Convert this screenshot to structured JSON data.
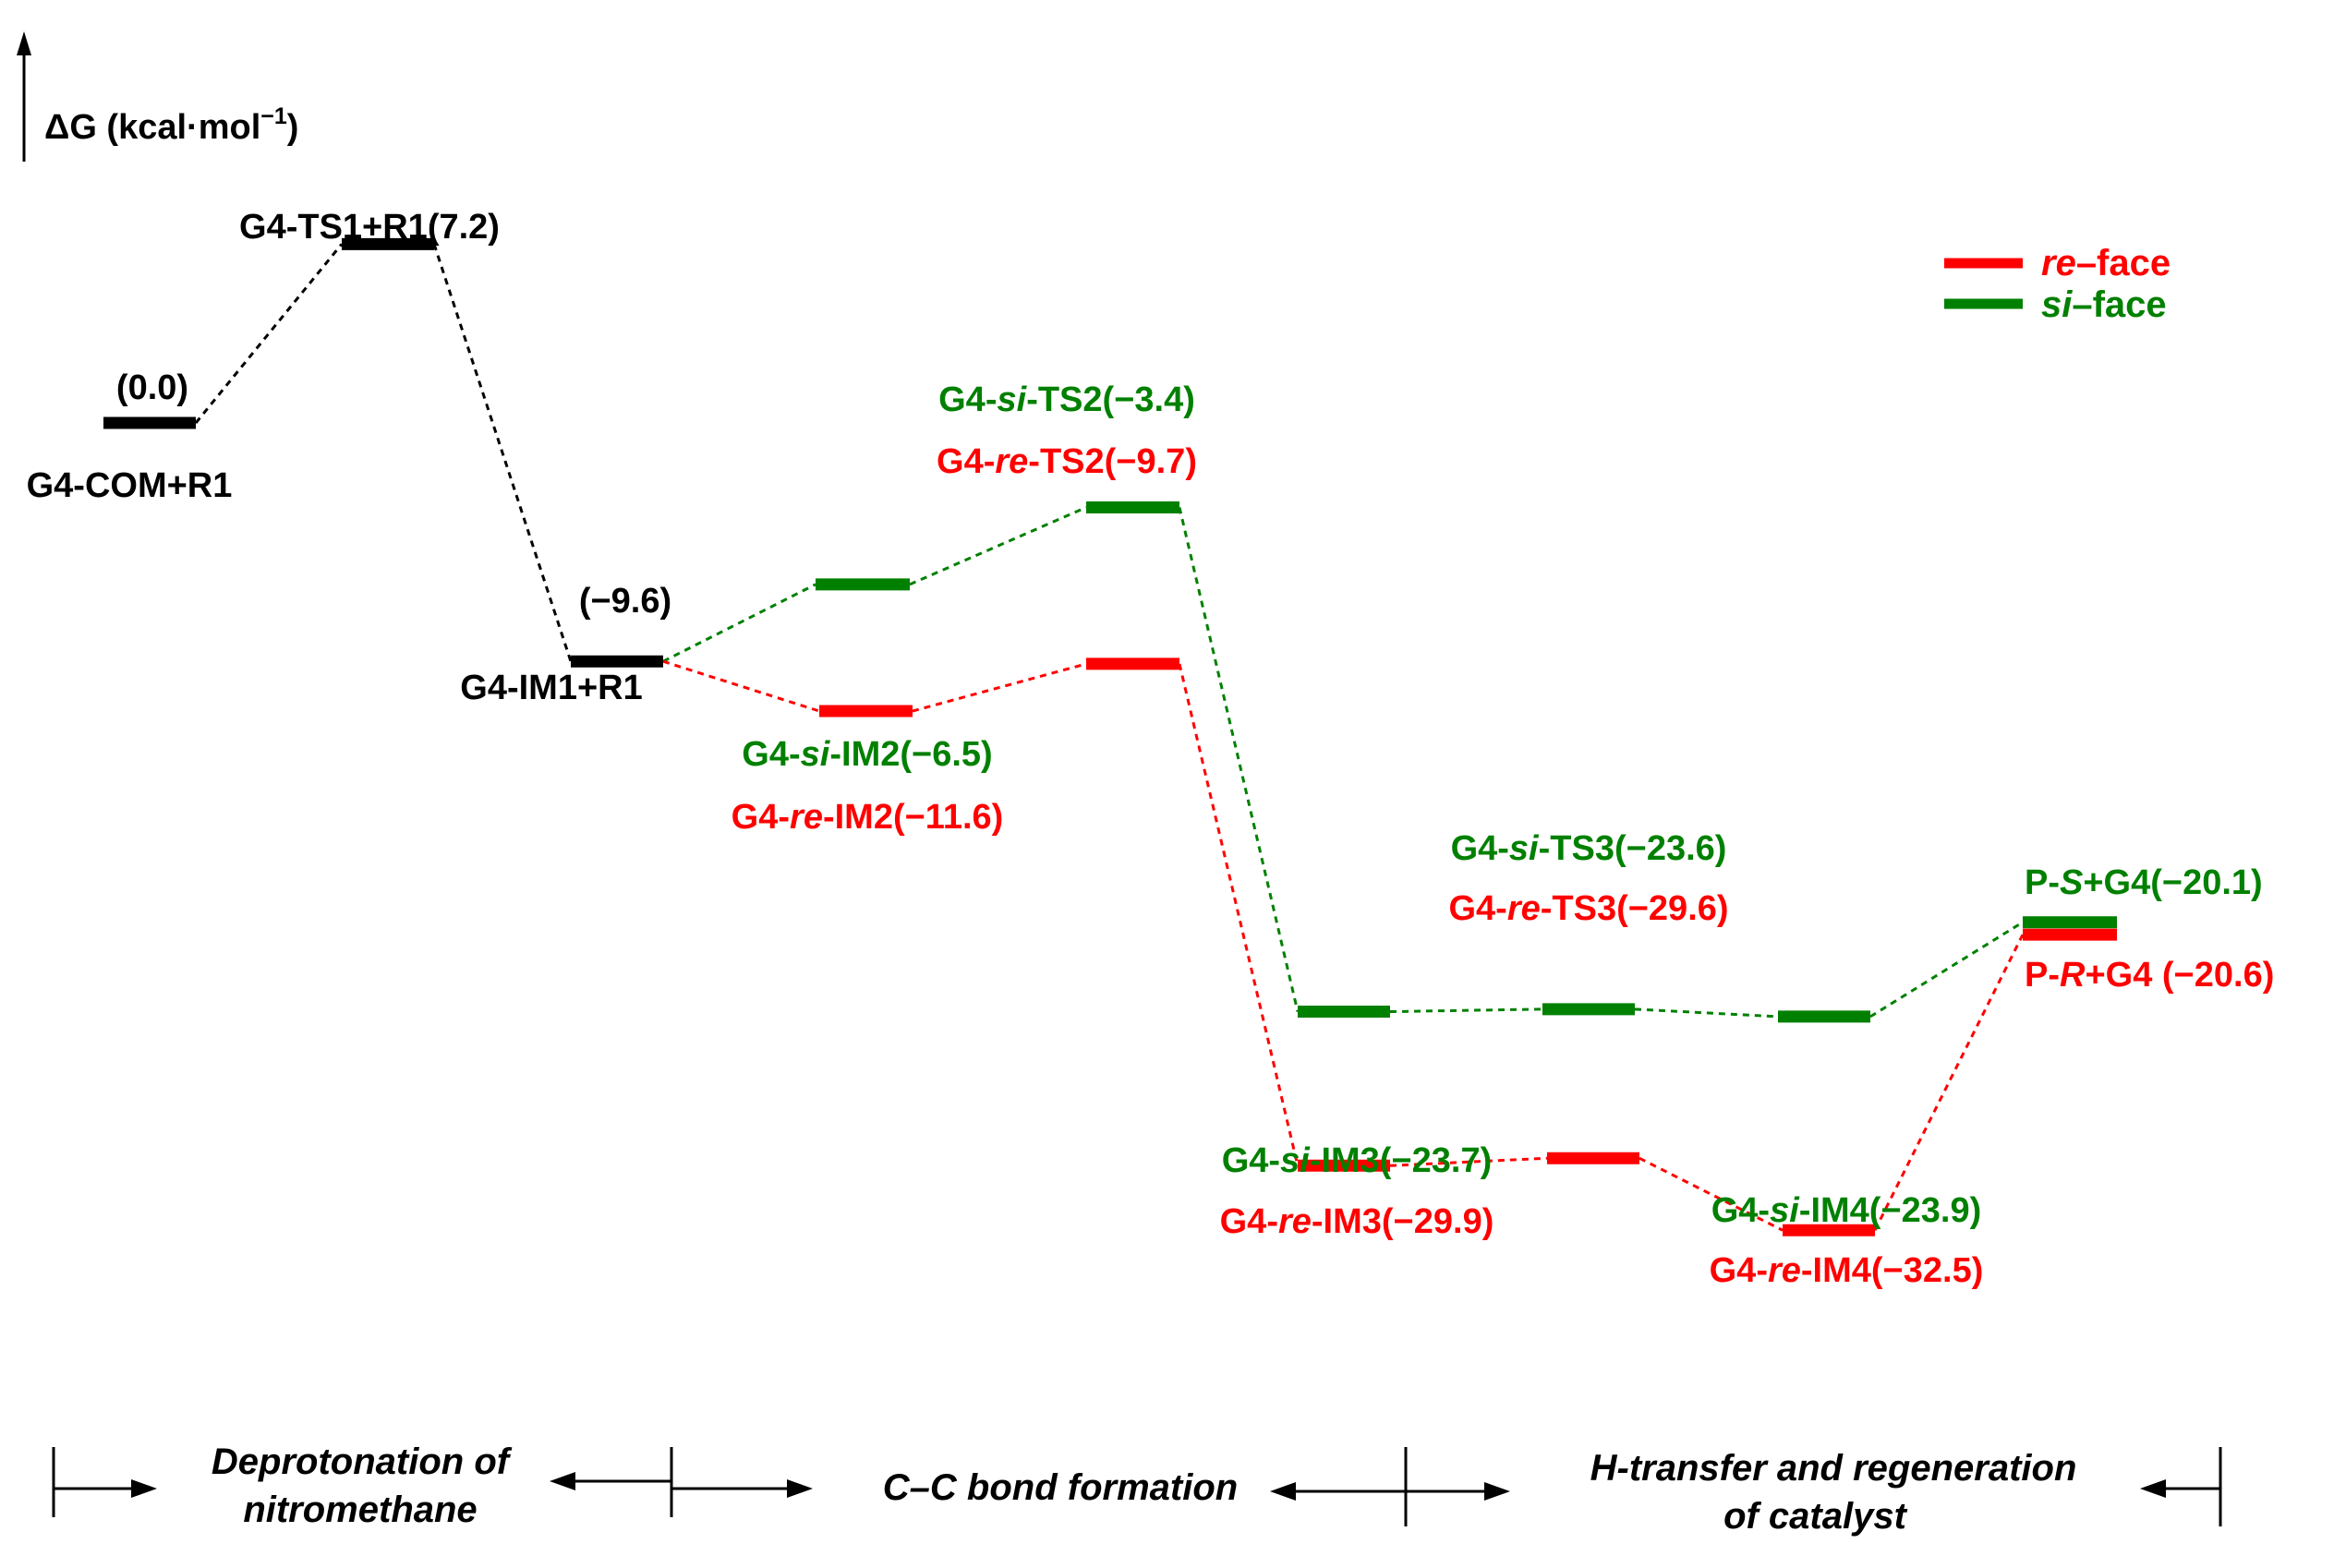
{
  "axis": {
    "ylabel_prefix": "ΔG (kcal·mol",
    "ylabel_sup": "−1",
    "ylabel_suffix": ")"
  },
  "colors": {
    "neutral": "#000000",
    "re": "#ff0000",
    "si": "#008000"
  },
  "legend": [
    {
      "series": "re",
      "italic": "re",
      "rest": "–face"
    },
    {
      "series": "si",
      "italic": "si",
      "rest": "–face"
    }
  ],
  "stages": [
    {
      "lines": [
        "Deprotonation of",
        "nitromethane"
      ]
    },
    {
      "lines": [
        "C–C bond formation"
      ]
    },
    {
      "lines": [
        "H-transfer and regeneration",
        "of catalyst"
      ]
    }
  ],
  "chart_data": {
    "type": "energy_profile",
    "unit": "kcal·mol−1",
    "states": [
      {
        "id": "COM",
        "series": "neutral",
        "energy": 0.0,
        "label": "G4-COM+R1",
        "value_label": "(0.0)"
      },
      {
        "id": "TS1",
        "series": "neutral",
        "energy": 7.2,
        "label": "G4-TS1+R1(7.2)"
      },
      {
        "id": "IM1",
        "series": "neutral",
        "energy": -9.6,
        "label": "G4-IM1+R1",
        "value_label": "(−9.6)"
      },
      {
        "id": "si-IM2",
        "series": "si",
        "energy": -6.5,
        "parts": [
          "G4-",
          "si",
          "-IM2(−6.5)"
        ]
      },
      {
        "id": "re-IM2",
        "series": "re",
        "energy": -11.6,
        "parts": [
          "G4-",
          "re",
          "-IM2(−11.6)"
        ]
      },
      {
        "id": "si-TS2",
        "series": "si",
        "energy": -3.4,
        "parts": [
          "G4-",
          "si",
          "-TS2(−3.4)"
        ]
      },
      {
        "id": "re-TS2",
        "series": "re",
        "energy": -9.7,
        "parts": [
          "G4-",
          "re",
          "-TS2(−9.7)"
        ]
      },
      {
        "id": "si-IM3",
        "series": "si",
        "energy": -23.7,
        "parts": [
          "G4-",
          "si",
          "-IM3(−23.7)"
        ]
      },
      {
        "id": "re-IM3",
        "series": "re",
        "energy": -29.9,
        "parts": [
          "G4-",
          "re",
          "-IM3(−29.9)"
        ]
      },
      {
        "id": "si-TS3",
        "series": "si",
        "energy": -23.6,
        "parts": [
          "G4-",
          "si",
          "-TS3(−23.6)"
        ]
      },
      {
        "id": "re-TS3",
        "series": "re",
        "energy": -29.6,
        "parts": [
          "G4-",
          "re",
          "-TS3(−29.6)"
        ]
      },
      {
        "id": "si-IM4",
        "series": "si",
        "energy": -23.9,
        "parts": [
          "G4-",
          "si",
          "-IM4(−23.9)"
        ]
      },
      {
        "id": "re-IM4",
        "series": "re",
        "energy": -32.5,
        "parts": [
          "G4-",
          "re",
          "-IM4(−32.5)"
        ]
      },
      {
        "id": "P-S",
        "series": "si",
        "energy": -20.1,
        "parts": [
          "P-",
          "S",
          "+G4(−20.1)"
        ]
      },
      {
        "id": "P-R",
        "series": "re",
        "energy": -20.6,
        "parts": [
          "P-",
          "R",
          "+G4 (−20.6)"
        ]
      }
    ],
    "connections": [
      {
        "from": "COM",
        "to": "TS1",
        "series": "neutral"
      },
      {
        "from": "TS1",
        "to": "IM1",
        "series": "neutral"
      },
      {
        "from": "IM1",
        "to": "si-IM2",
        "series": "si"
      },
      {
        "from": "si-IM2",
        "to": "si-TS2",
        "series": "si"
      },
      {
        "from": "si-TS2",
        "to": "si-IM3",
        "series": "si"
      },
      {
        "from": "si-IM3",
        "to": "si-TS3",
        "series": "si"
      },
      {
        "from": "si-TS3",
        "to": "si-IM4",
        "series": "si"
      },
      {
        "from": "si-IM4",
        "to": "P-S",
        "series": "si"
      },
      {
        "from": "IM1",
        "to": "re-IM2",
        "series": "re"
      },
      {
        "from": "re-IM2",
        "to": "re-TS2",
        "series": "re"
      },
      {
        "from": "re-TS2",
        "to": "re-IM3",
        "series": "re"
      },
      {
        "from": "re-IM3",
        "to": "re-TS3",
        "series": "re"
      },
      {
        "from": "re-TS3",
        "to": "re-IM4",
        "series": "re"
      },
      {
        "from": "re-IM4",
        "to": "P-R",
        "series": "re"
      }
    ]
  }
}
